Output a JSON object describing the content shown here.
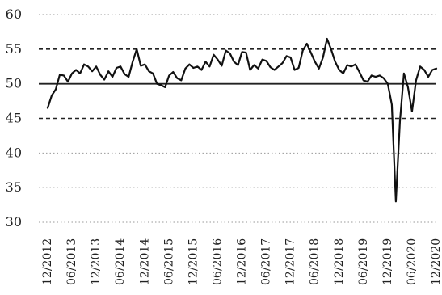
{
  "chart_data": {
    "type": "line",
    "title": "",
    "xlabel": "",
    "ylabel": "",
    "ylim": [
      30,
      60
    ],
    "yticks": [
      30,
      35,
      40,
      45,
      50,
      55,
      60
    ],
    "xticks": [
      "12/2012",
      "06/2013",
      "12/2013",
      "06/2014",
      "12/2014",
      "06/2015",
      "12/2015",
      "06/2016",
      "12/2016",
      "06/2017",
      "12/2017",
      "06/2018",
      "12/2018",
      "06/2019",
      "12/2019",
      "06/2020",
      "12/2020"
    ],
    "grid": {
      "dotted": [
        30,
        35,
        40,
        60
      ],
      "dashed": [
        45,
        55
      ],
      "solid": [
        50
      ]
    },
    "legend": "none",
    "series": [
      {
        "line_color": "#111111",
        "x": [
          "12/2012",
          "01/2013",
          "02/2013",
          "03/2013",
          "04/2013",
          "05/2013",
          "06/2013",
          "07/2013",
          "08/2013",
          "09/2013",
          "10/2013",
          "11/2013",
          "12/2013",
          "01/2014",
          "02/2014",
          "03/2014",
          "04/2014",
          "05/2014",
          "06/2014",
          "07/2014",
          "08/2014",
          "09/2014",
          "10/2014",
          "11/2014",
          "12/2014",
          "01/2015",
          "02/2015",
          "03/2015",
          "04/2015",
          "05/2015",
          "06/2015",
          "07/2015",
          "08/2015",
          "09/2015",
          "10/2015",
          "11/2015",
          "12/2015",
          "01/2016",
          "02/2016",
          "03/2016",
          "04/2016",
          "05/2016",
          "06/2016",
          "07/2016",
          "08/2016",
          "09/2016",
          "10/2016",
          "11/2016",
          "12/2016",
          "01/2017",
          "02/2017",
          "03/2017",
          "04/2017",
          "05/2017",
          "06/2017",
          "07/2017",
          "08/2017",
          "09/2017",
          "10/2017",
          "11/2017",
          "12/2017",
          "01/2018",
          "02/2018",
          "03/2018",
          "04/2018",
          "05/2018",
          "06/2018",
          "07/2018",
          "08/2018",
          "09/2018",
          "10/2018",
          "11/2018",
          "12/2018",
          "01/2019",
          "02/2019",
          "03/2019",
          "04/2019",
          "05/2019",
          "06/2019",
          "07/2019",
          "08/2019",
          "09/2019",
          "10/2019",
          "11/2019",
          "12/2019",
          "01/2020",
          "02/2020",
          "03/2020",
          "04/2020",
          "05/2020",
          "06/2020",
          "07/2020",
          "08/2020",
          "09/2020",
          "10/2020",
          "11/2020",
          "12/2020"
        ],
        "values": [
          46.5,
          48.3,
          49.2,
          51.3,
          51.2,
          50.3,
          51.5,
          52.0,
          51.5,
          52.8,
          52.5,
          51.8,
          52.5,
          51.3,
          50.6,
          51.8,
          51.0,
          52.3,
          52.5,
          51.4,
          51.0,
          53.2,
          55.0,
          52.6,
          52.8,
          51.8,
          51.5,
          50.0,
          49.8,
          49.5,
          51.2,
          51.7,
          50.8,
          50.5,
          52.2,
          52.8,
          52.3,
          52.5,
          52.0,
          53.2,
          52.5,
          54.2,
          53.5,
          52.6,
          54.8,
          54.4,
          53.2,
          52.7,
          54.6,
          54.5,
          52.0,
          52.7,
          52.2,
          53.5,
          53.3,
          52.4,
          52.0,
          52.5,
          53.0,
          54.0,
          53.8,
          52.0,
          52.3,
          54.8,
          55.8,
          54.5,
          53.2,
          52.2,
          53.8,
          56.5,
          55.0,
          53.2,
          52.0,
          51.5,
          52.7,
          52.5,
          52.8,
          51.7,
          50.5,
          50.3,
          51.2,
          51.0,
          51.2,
          50.8,
          50.0,
          47.0,
          33.0,
          44.5,
          51.5,
          49.5,
          46.0,
          50.5,
          52.5,
          52.0,
          51.0,
          52.0,
          52.2
        ]
      }
    ]
  }
}
